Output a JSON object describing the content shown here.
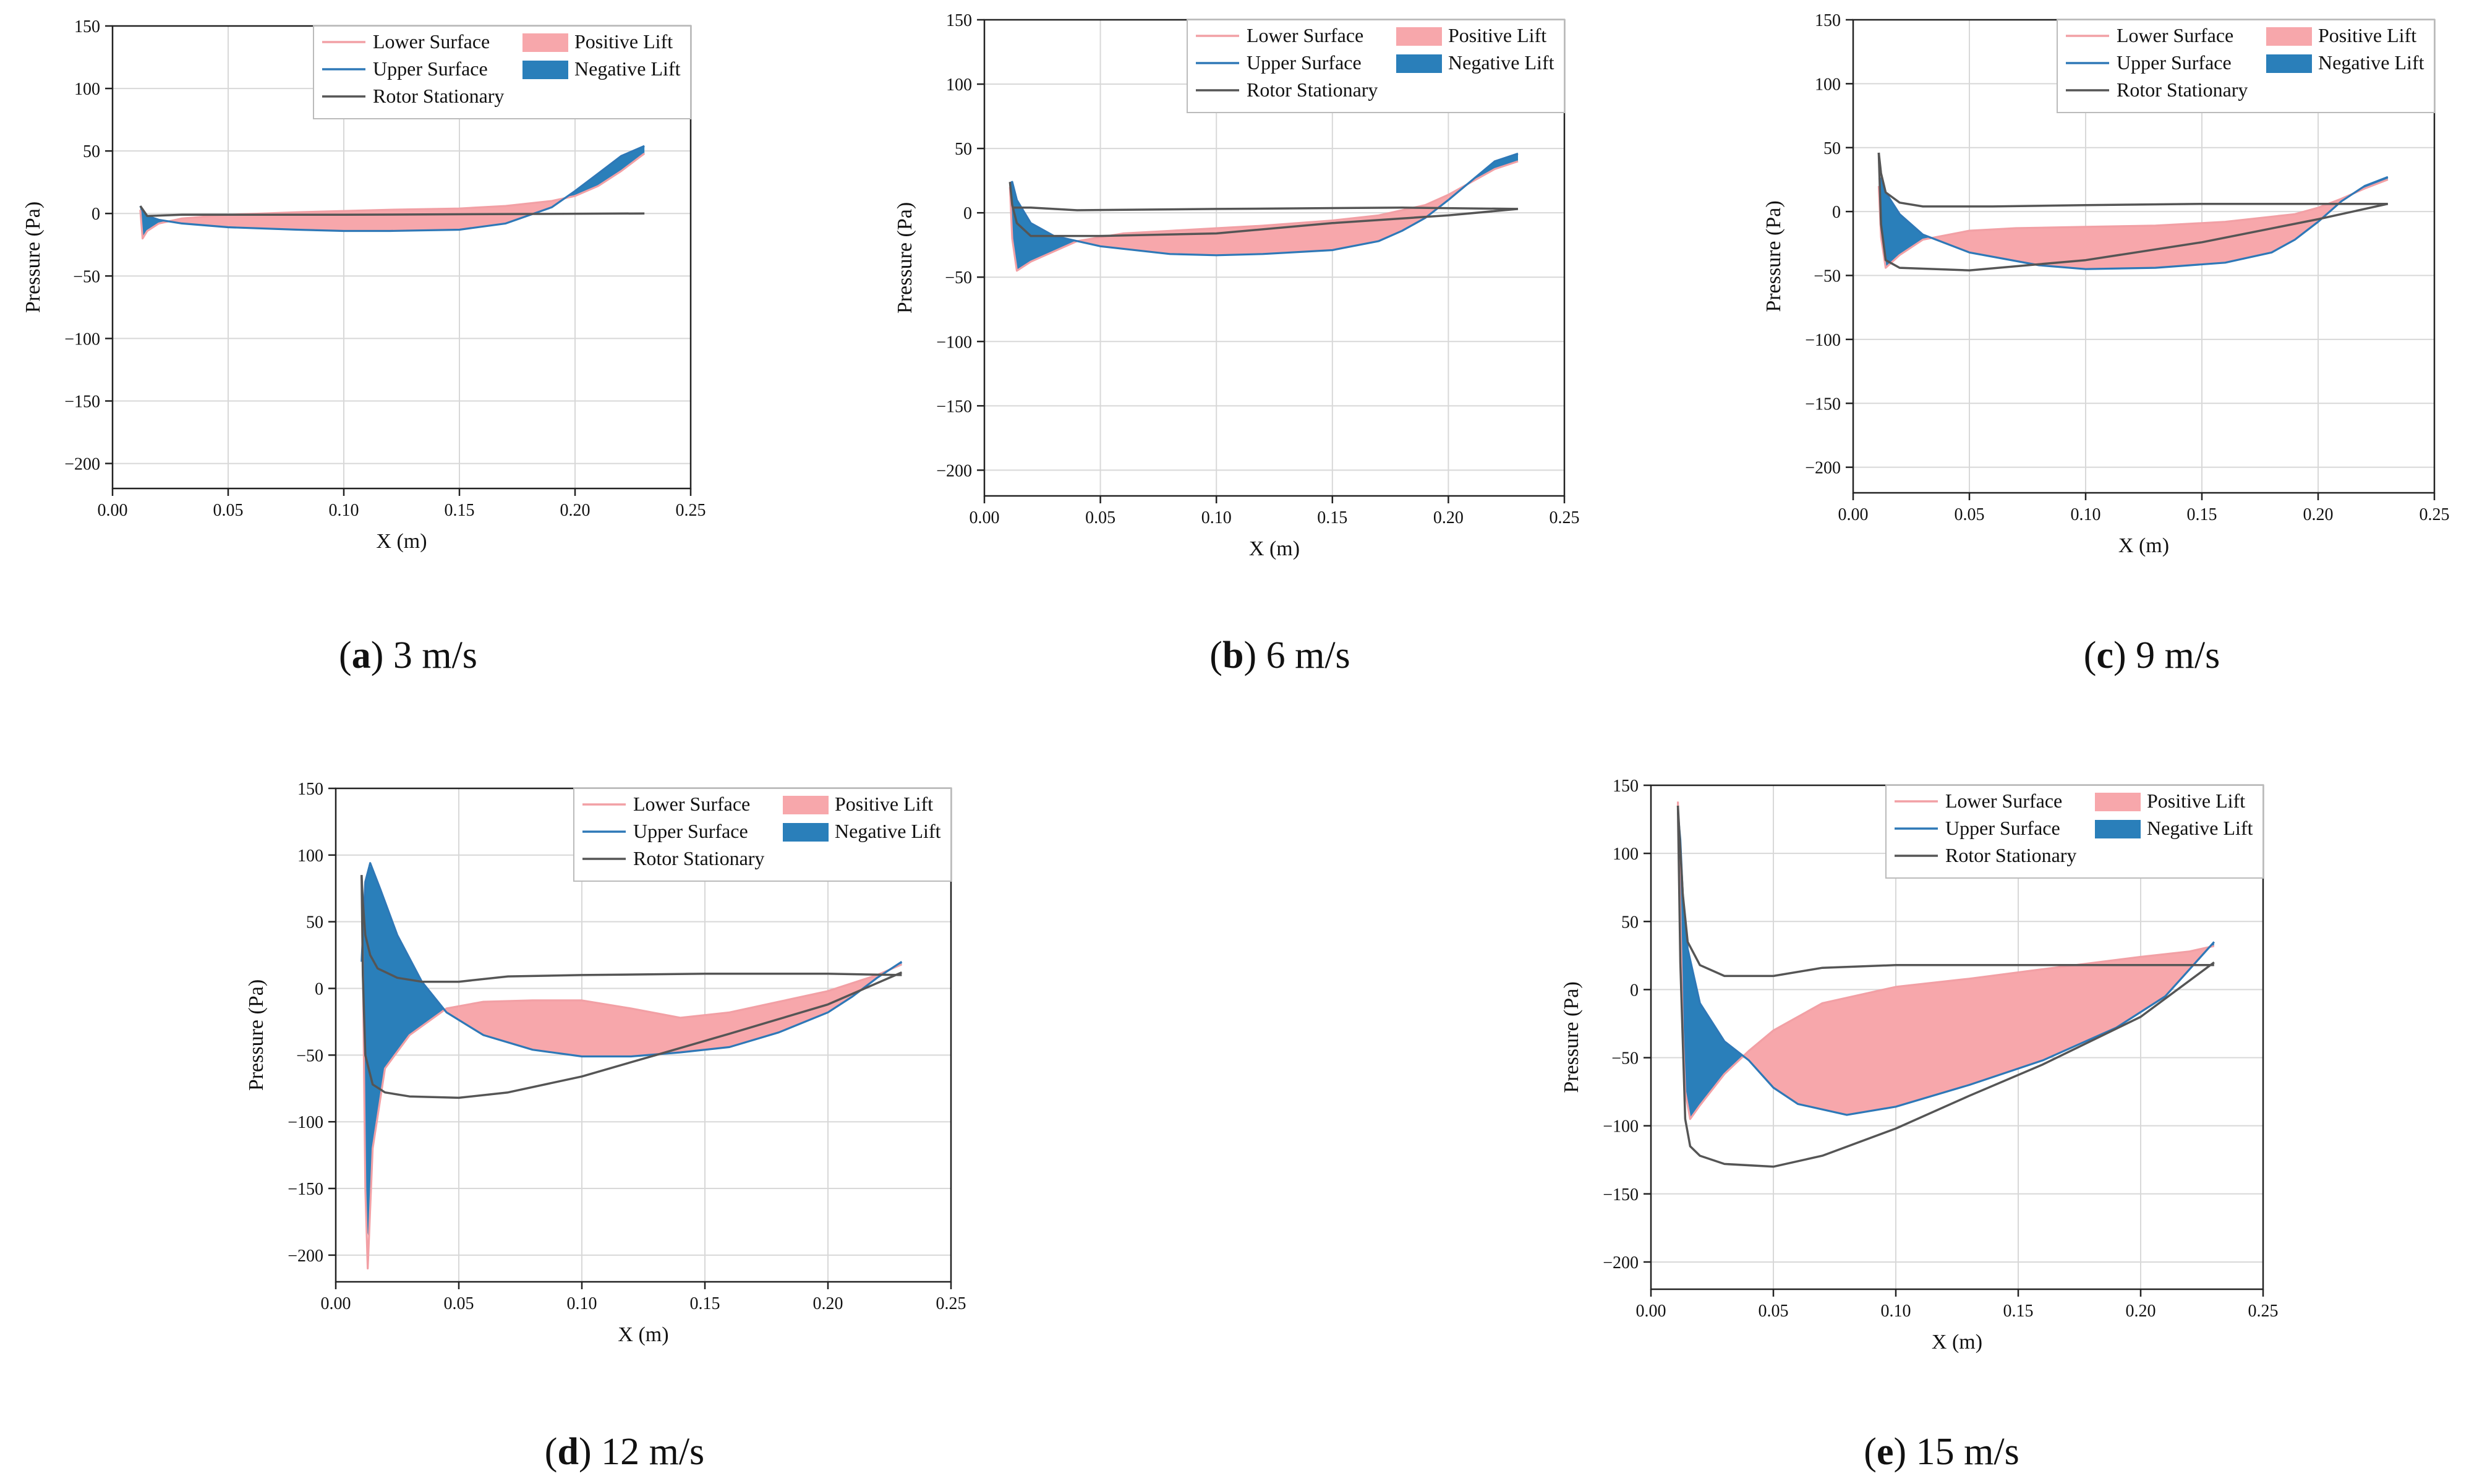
{
  "figure": {
    "captions": [
      {
        "letter": "a",
        "open": "(",
        "close": ")",
        "rest": " 3 m/s"
      },
      {
        "letter": "b",
        "open": "(",
        "close": ")",
        "rest": " 6 m/s"
      },
      {
        "letter": "c",
        "open": "(",
        "close": ")",
        "rest": " 9 m/s"
      },
      {
        "letter": "d",
        "open": "(",
        "close": ")",
        "rest": " 12 m/s"
      },
      {
        "letter": "e",
        "open": "(",
        "close": ")",
        "rest": " 15 m/s"
      }
    ]
  },
  "colors": {
    "lower_surface": "#f2a0a5",
    "upper_surface": "#2e78b7",
    "rotor_stationary": "#555555",
    "positive_lift_fill": "#f7a7ab",
    "negative_lift_fill": "#2a7fba",
    "grid": "#d8d8d8"
  },
  "chart_data": [
    {
      "type": "line",
      "xlabel": "X (m)",
      "ylabel": "Pressure (Pa)",
      "xlim": [
        0,
        0.25
      ],
      "ylim": [
        -220,
        150
      ],
      "xticks": [
        "0.00",
        "0.05",
        "0.10",
        "0.15",
        "0.20",
        "0.25"
      ],
      "yticks": [
        "150",
        "100",
        "50",
        "0",
        "−50",
        "−100",
        "−150",
        "−200"
      ],
      "grid": true,
      "legend_position": "top-right",
      "legend": [
        "Lower Surface",
        "Upper Surface",
        "Rotor Stationary",
        "Positive Lift",
        "Negative Lift"
      ],
      "series": [
        {
          "name": "Lower Surface",
          "x": [
            0.012,
            0.013,
            0.015,
            0.02,
            0.03,
            0.05,
            0.08,
            0.1,
            0.12,
            0.15,
            0.17,
            0.19,
            0.2,
            0.21,
            0.22,
            0.23
          ],
          "y": [
            3,
            -20,
            -14,
            -8,
            -4,
            -1,
            1,
            2,
            3,
            4,
            6,
            10,
            14,
            22,
            34,
            48
          ]
        },
        {
          "name": "Upper Surface",
          "x": [
            0.012,
            0.013,
            0.015,
            0.02,
            0.03,
            0.05,
            0.08,
            0.1,
            0.12,
            0.15,
            0.17,
            0.19,
            0.2,
            0.21,
            0.22,
            0.23
          ],
          "y": [
            6,
            2,
            -2,
            -5,
            -8,
            -11,
            -13,
            -14,
            -14,
            -13,
            -8,
            5,
            18,
            32,
            46,
            54
          ]
        },
        {
          "name": "Rotor Stationary",
          "x": [
            0.012,
            0.015,
            0.03,
            0.1,
            0.23
          ],
          "y": [
            6,
            -2,
            -1,
            -1,
            0
          ]
        }
      ]
    },
    {
      "type": "line",
      "xlabel": "X (m)",
      "ylabel": "Pressure (Pa)",
      "xlim": [
        0,
        0.25
      ],
      "ylim": [
        -220,
        150
      ],
      "xticks": [
        "0.00",
        "0.05",
        "0.10",
        "0.15",
        "0.20",
        "0.25"
      ],
      "yticks": [
        "150",
        "100",
        "50",
        "0",
        "−50",
        "−100",
        "−150",
        "−200"
      ],
      "grid": true,
      "legend_position": "top-right",
      "legend": [
        "Lower Surface",
        "Upper Surface",
        "Rotor Stationary",
        "Positive Lift",
        "Negative Lift"
      ],
      "series": [
        {
          "name": "Lower Surface",
          "x": [
            0.011,
            0.012,
            0.014,
            0.02,
            0.04,
            0.06,
            0.08,
            0.1,
            0.12,
            0.15,
            0.17,
            0.19,
            0.2,
            0.21,
            0.22,
            0.23
          ],
          "y": [
            20,
            -20,
            -45,
            -38,
            -22,
            -16,
            -14,
            -12,
            -10,
            -6,
            -2,
            6,
            14,
            24,
            34,
            40
          ]
        },
        {
          "name": "Upper Surface",
          "x": [
            0.011,
            0.012,
            0.014,
            0.02,
            0.03,
            0.05,
            0.08,
            0.1,
            0.12,
            0.15,
            0.17,
            0.18,
            0.19,
            0.2,
            0.21,
            0.22,
            0.23
          ],
          "y": [
            23,
            24,
            10,
            -8,
            -18,
            -26,
            -32,
            -33,
            -32,
            -29,
            -22,
            -14,
            -4,
            10,
            25,
            40,
            46
          ]
        },
        {
          "name": "Rotor Stationary",
          "x": [
            0.011,
            0.012,
            0.014,
            0.02,
            0.05,
            0.1,
            0.15,
            0.2,
            0.23
          ],
          "y": [
            24,
            6,
            -8,
            -18,
            -18,
            -16,
            -8,
            -2,
            3
          ]
        },
        {
          "name": "Rotor Stationary",
          "x": [
            0.012,
            0.02,
            0.04,
            0.1,
            0.18,
            0.23
          ],
          "y": [
            4,
            4,
            2,
            3,
            4,
            3
          ]
        }
      ]
    },
    {
      "type": "line",
      "xlabel": "X (m)",
      "ylabel": "Pressure (Pa)",
      "xlim": [
        0,
        0.25
      ],
      "ylim": [
        -220,
        150
      ],
      "xticks": [
        "0.00",
        "0.05",
        "0.10",
        "0.15",
        "0.20",
        "0.25"
      ],
      "yticks": [
        "150",
        "100",
        "50",
        "0",
        "−50",
        "−100",
        "−150",
        "−200"
      ],
      "grid": true,
      "legend_position": "top-right",
      "legend": [
        "Lower Surface",
        "Upper Surface",
        "Rotor Stationary",
        "Positive Lift",
        "Negative Lift"
      ],
      "series": [
        {
          "name": "Lower Surface",
          "x": [
            0.011,
            0.012,
            0.014,
            0.02,
            0.03,
            0.05,
            0.07,
            0.1,
            0.13,
            0.16,
            0.19,
            0.2,
            0.21,
            0.22,
            0.23
          ],
          "y": [
            20,
            -20,
            -44,
            -34,
            -22,
            -15,
            -13,
            -12,
            -11,
            -8,
            -2,
            3,
            10,
            18,
            25
          ]
        },
        {
          "name": "Upper Surface",
          "x": [
            0.011,
            0.012,
            0.014,
            0.02,
            0.03,
            0.05,
            0.08,
            0.1,
            0.13,
            0.16,
            0.18,
            0.19,
            0.2,
            0.21,
            0.22,
            0.23
          ],
          "y": [
            25,
            26,
            15,
            -2,
            -18,
            -32,
            -42,
            -45,
            -44,
            -40,
            -32,
            -22,
            -8,
            8,
            20,
            27
          ]
        },
        {
          "name": "Rotor Stationary",
          "x": [
            0.011,
            0.012,
            0.014,
            0.02,
            0.03,
            0.06,
            0.1,
            0.15,
            0.2,
            0.23
          ],
          "y": [
            46,
            30,
            15,
            7,
            4,
            4,
            5,
            6,
            6,
            6
          ]
        },
        {
          "name": "Rotor Stationary",
          "x": [
            0.011,
            0.012,
            0.014,
            0.02,
            0.05,
            0.1,
            0.15,
            0.2,
            0.23
          ],
          "y": [
            46,
            -10,
            -38,
            -44,
            -46,
            -38,
            -24,
            -6,
            6
          ]
        }
      ]
    },
    {
      "type": "line",
      "xlabel": "X (m)",
      "ylabel": "Pressure (Pa)",
      "xlim": [
        0,
        0.25
      ],
      "ylim": [
        -220,
        150
      ],
      "xticks": [
        "0.00",
        "0.05",
        "0.10",
        "0.15",
        "0.20",
        "0.25"
      ],
      "yticks": [
        "150",
        "100",
        "50",
        "0",
        "−50",
        "−100",
        "−150",
        "−200"
      ],
      "grid": true,
      "legend_position": "top-right",
      "legend": [
        "Lower Surface",
        "Upper Surface",
        "Rotor Stationary",
        "Positive Lift",
        "Negative Lift"
      ],
      "series": [
        {
          "name": "Lower Surface",
          "x": [
            0.0105,
            0.011,
            0.012,
            0.013,
            0.015,
            0.02,
            0.03,
            0.045,
            0.06,
            0.08,
            0.1,
            0.12,
            0.14,
            0.16,
            0.18,
            0.2,
            0.22,
            0.23
          ],
          "y": [
            85,
            20,
            -150,
            -210,
            -120,
            -60,
            -35,
            -15,
            -10,
            -9,
            -9,
            -15,
            -22,
            -18,
            -10,
            -2,
            10,
            18
          ]
        },
        {
          "name": "Upper Surface",
          "x": [
            0.0105,
            0.012,
            0.014,
            0.018,
            0.025,
            0.035,
            0.045,
            0.06,
            0.08,
            0.1,
            0.12,
            0.14,
            0.16,
            0.18,
            0.2,
            0.21,
            0.22,
            0.23
          ],
          "y": [
            20,
            80,
            94,
            75,
            40,
            5,
            -18,
            -35,
            -46,
            -51,
            -51,
            -48,
            -44,
            -33,
            -18,
            -6,
            8,
            20
          ]
        },
        {
          "name": "Rotor Stationary",
          "x": [
            0.0105,
            0.011,
            0.012,
            0.014,
            0.017,
            0.025,
            0.035,
            0.05,
            0.07,
            0.1,
            0.15,
            0.2,
            0.23
          ],
          "y": [
            85,
            65,
            40,
            25,
            15,
            8,
            5,
            5,
            9,
            10,
            11,
            11,
            10
          ]
        },
        {
          "name": "Rotor Stationary",
          "x": [
            0.0105,
            0.011,
            0.012,
            0.015,
            0.02,
            0.03,
            0.05,
            0.07,
            0.1,
            0.13,
            0.16,
            0.2,
            0.23
          ],
          "y": [
            85,
            10,
            -50,
            -72,
            -78,
            -81,
            -82,
            -78,
            -66,
            -50,
            -34,
            -12,
            12
          ]
        }
      ]
    },
    {
      "type": "line",
      "xlabel": "X (m)",
      "ylabel": "Pressure (Pa)",
      "xlim": [
        0,
        0.25
      ],
      "ylim": [
        -220,
        150
      ],
      "xticks": [
        "0.00",
        "0.05",
        "0.10",
        "0.15",
        "0.20",
        "0.25"
      ],
      "yticks": [
        "150",
        "100",
        "50",
        "0",
        "−50",
        "−100",
        "−150",
        "−200"
      ],
      "grid": true,
      "legend_position": "top-right",
      "legend": [
        "Lower Surface",
        "Upper Surface",
        "Rotor Stationary",
        "Positive Lift",
        "Negative Lift"
      ],
      "series": [
        {
          "name": "Lower Surface",
          "x": [
            0.011,
            0.012,
            0.013,
            0.014,
            0.016,
            0.02,
            0.03,
            0.04,
            0.05,
            0.07,
            0.1,
            0.13,
            0.16,
            0.2,
            0.22,
            0.23
          ],
          "y": [
            138,
            60,
            -30,
            -75,
            -95,
            -85,
            -62,
            -45,
            -30,
            -10,
            2,
            8,
            15,
            24,
            28,
            32
          ]
        },
        {
          "name": "Upper Surface",
          "x": [
            0.011,
            0.012,
            0.013,
            0.015,
            0.02,
            0.03,
            0.04,
            0.05,
            0.06,
            0.08,
            0.1,
            0.13,
            0.16,
            0.19,
            0.21,
            0.22,
            0.23
          ],
          "y": [
            130,
            110,
            70,
            30,
            -10,
            -38,
            -52,
            -72,
            -84,
            -92,
            -86,
            -70,
            -52,
            -28,
            -5,
            15,
            35
          ]
        },
        {
          "name": "Rotor Stationary",
          "x": [
            0.011,
            0.013,
            0.015,
            0.02,
            0.03,
            0.05,
            0.07,
            0.1,
            0.15,
            0.2,
            0.23
          ],
          "y": [
            135,
            70,
            35,
            18,
            10,
            10,
            16,
            18,
            18,
            18,
            18
          ]
        },
        {
          "name": "Rotor Stationary",
          "x": [
            0.011,
            0.012,
            0.014,
            0.016,
            0.02,
            0.03,
            0.05,
            0.07,
            0.1,
            0.13,
            0.16,
            0.2,
            0.23
          ],
          "y": [
            135,
            20,
            -95,
            -115,
            -122,
            -128,
            -130,
            -122,
            -102,
            -78,
            -55,
            -20,
            20
          ]
        }
      ]
    }
  ]
}
